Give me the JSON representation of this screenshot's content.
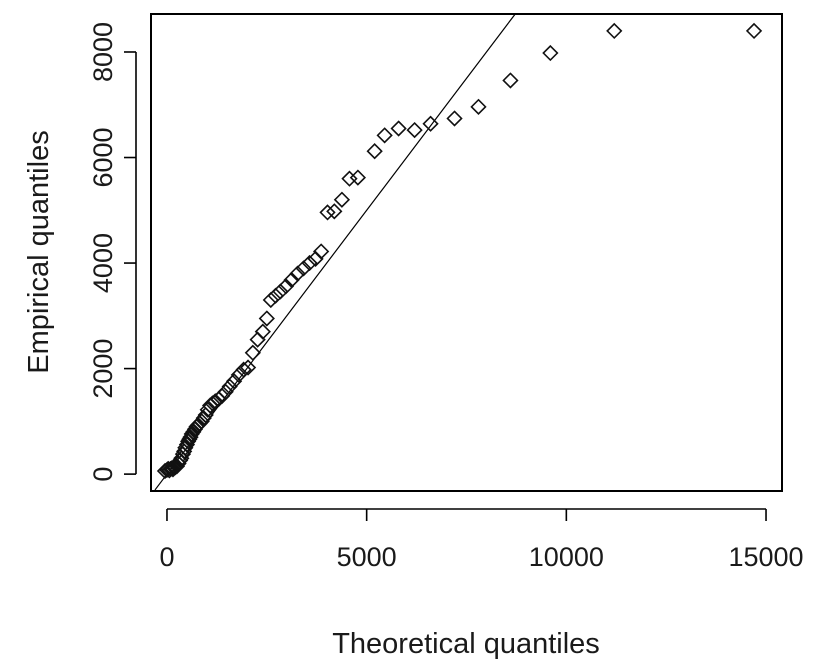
{
  "chart_data": {
    "type": "scatter",
    "title": "",
    "xlabel": "Theoretical quantiles",
    "ylabel": "Empirical quantiles",
    "xlim": [
      -400,
      15400
    ],
    "ylim": [
      -320,
      8720
    ],
    "x_ticks": [
      0,
      5000,
      10000,
      15000
    ],
    "x_tick_labels": [
      "0",
      "5000",
      "10000",
      "15000"
    ],
    "y_ticks": [
      0,
      2000,
      4000,
      6000,
      8000
    ],
    "y_tick_labels": [
      "0",
      "2000",
      "4000",
      "6000",
      "8000"
    ],
    "grid": false,
    "legend": "none",
    "reference_line": {
      "points": [
        [
          -300,
          -300
        ],
        [
          8730,
          8730
        ]
      ]
    },
    "series": [
      {
        "marker": "diamond-open",
        "color": "#111111",
        "points": [
          [
            -50,
            60
          ],
          [
            0,
            80
          ],
          [
            30,
            100
          ],
          [
            60,
            70
          ],
          [
            90,
            100
          ],
          [
            120,
            110
          ],
          [
            150,
            90
          ],
          [
            180,
            120
          ],
          [
            210,
            130
          ],
          [
            250,
            150
          ],
          [
            290,
            200
          ],
          [
            330,
            260
          ],
          [
            360,
            300
          ],
          [
            400,
            380
          ],
          [
            430,
            430
          ],
          [
            460,
            500
          ],
          [
            500,
            560
          ],
          [
            530,
            620
          ],
          [
            560,
            660
          ],
          [
            590,
            700
          ],
          [
            620,
            760
          ],
          [
            660,
            800
          ],
          [
            700,
            850
          ],
          [
            740,
            900
          ],
          [
            780,
            930
          ],
          [
            820,
            960
          ],
          [
            870,
            1000
          ],
          [
            920,
            1060
          ],
          [
            970,
            1120
          ],
          [
            1020,
            1220
          ],
          [
            1080,
            1300
          ],
          [
            1140,
            1340
          ],
          [
            1210,
            1380
          ],
          [
            1290,
            1420
          ],
          [
            1380,
            1480
          ],
          [
            1470,
            1560
          ],
          [
            1570,
            1660
          ],
          [
            1680,
            1760
          ],
          [
            1800,
            1880
          ],
          [
            1920,
            1980
          ],
          [
            2030,
            2020
          ],
          [
            2150,
            2300
          ],
          [
            2270,
            2550
          ],
          [
            2400,
            2700
          ],
          [
            2500,
            2950
          ],
          [
            2600,
            3300
          ],
          [
            2720,
            3380
          ],
          [
            2840,
            3460
          ],
          [
            2980,
            3560
          ],
          [
            3120,
            3680
          ],
          [
            3270,
            3800
          ],
          [
            3420,
            3900
          ],
          [
            3570,
            4000
          ],
          [
            3720,
            4080
          ],
          [
            3860,
            4220
          ],
          [
            4020,
            4960
          ],
          [
            4190,
            4980
          ],
          [
            4380,
            5200
          ],
          [
            4570,
            5600
          ],
          [
            4780,
            5620
          ],
          [
            5200,
            6120
          ],
          [
            5450,
            6420
          ],
          [
            5800,
            6550
          ],
          [
            6200,
            6520
          ],
          [
            6600,
            6640
          ],
          [
            7200,
            6740
          ],
          [
            7800,
            6960
          ],
          [
            8600,
            7460
          ],
          [
            9600,
            7980
          ],
          [
            11200,
            8400
          ],
          [
            14700,
            8400
          ]
        ]
      }
    ]
  }
}
